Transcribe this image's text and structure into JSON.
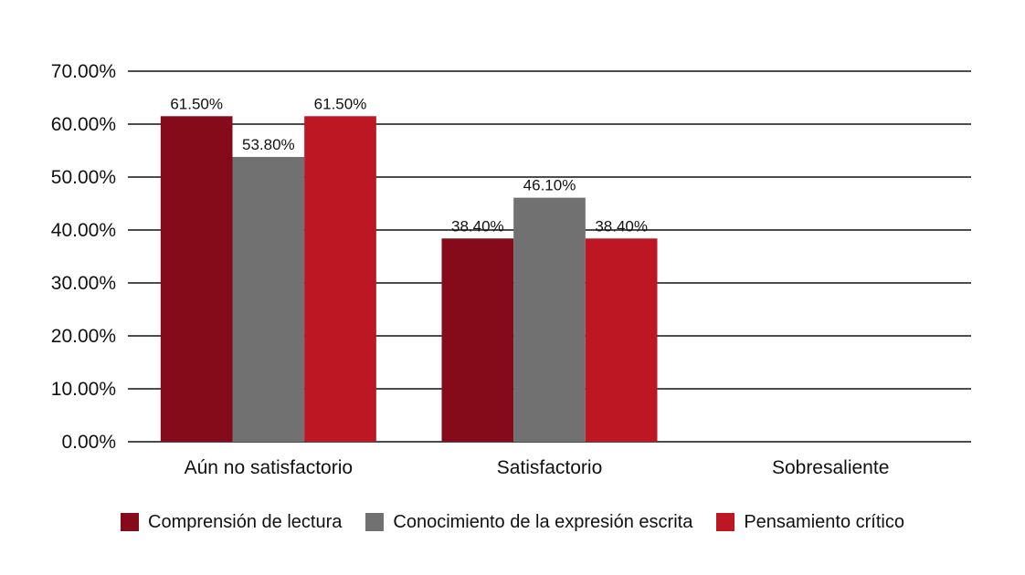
{
  "chart_data": {
    "type": "bar",
    "categories": [
      "Aún no satisfactorio",
      "Satisfactorio",
      "Sobresaliente"
    ],
    "series": [
      {
        "name": "Comprensión de lectura",
        "color": "#850a1a",
        "values": [
          61.5,
          38.4,
          0
        ],
        "labels": [
          "61.50%",
          "38.40%",
          ""
        ]
      },
      {
        "name": "Conocimiento de la expresión escrita",
        "color": "#717171",
        "values": [
          53.8,
          46.1,
          0
        ],
        "labels": [
          "53.80%",
          "46.10%",
          ""
        ]
      },
      {
        "name": "Pensamiento crítico",
        "color": "#bc1723",
        "values": [
          61.5,
          38.4,
          0
        ],
        "labels": [
          "61.50%",
          "38.40%",
          ""
        ]
      }
    ],
    "ylim": [
      0,
      70
    ],
    "yticks": [
      0,
      10,
      20,
      30,
      40,
      50,
      60,
      70
    ],
    "ytick_labels": [
      "0.00%",
      "10.00%",
      "20.00%",
      "30.00%",
      "40.00%",
      "50.00%",
      "60.00%",
      "70.00%"
    ],
    "title": "",
    "xlabel": "",
    "ylabel": "",
    "grid": true,
    "legend_position": "bottom"
  }
}
